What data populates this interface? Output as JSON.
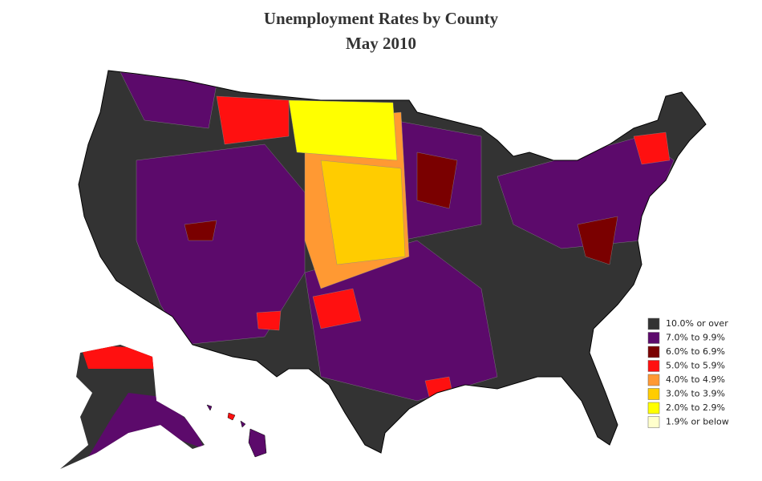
{
  "title": "Unemployment Rates by County",
  "subtitle": "May 2010",
  "legend": [
    {
      "label": "10.0% or over",
      "color": "#333333"
    },
    {
      "label": "7.0% to 9.9%",
      "color": "#5c0a6b"
    },
    {
      "label": "6.0% to 6.9%",
      "color": "#7a0000"
    },
    {
      "label": "5.0% to 5.9%",
      "color": "#ff1010"
    },
    {
      "label": "4.0% to 4.9%",
      "color": "#ff9933"
    },
    {
      "label": "3.0% to 3.9%",
      "color": "#ffcc00"
    },
    {
      "label": "2.0% to 2.9%",
      "color": "#ffff00"
    },
    {
      "label": "1.9% or below",
      "color": "#ffffcc"
    }
  ]
}
